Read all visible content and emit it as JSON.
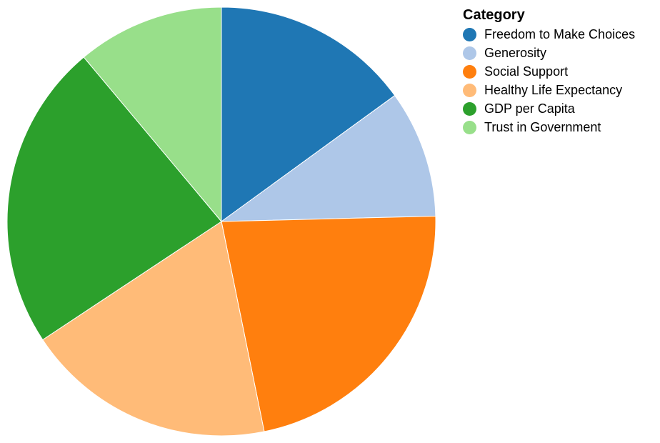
{
  "chart_data": {
    "type": "pie",
    "legend": {
      "title": "Category",
      "placement": "top-right"
    },
    "slices": [
      {
        "label": "Freedom to Make Choices",
        "value": 15.0,
        "color": "#1f77b4"
      },
      {
        "label": "Generosity",
        "value": 9.6,
        "color": "#aec7e8"
      },
      {
        "label": "Social Support",
        "value": 22.2,
        "color": "#ff7f0e"
      },
      {
        "label": "Healthy Life Expectancy",
        "value": 18.9,
        "color": "#ffbb78"
      },
      {
        "label": "GDP per Capita",
        "value": 23.2,
        "color": "#2ca02c"
      },
      {
        "label": "Trust in Government",
        "value": 11.1,
        "color": "#98df8a"
      }
    ]
  }
}
